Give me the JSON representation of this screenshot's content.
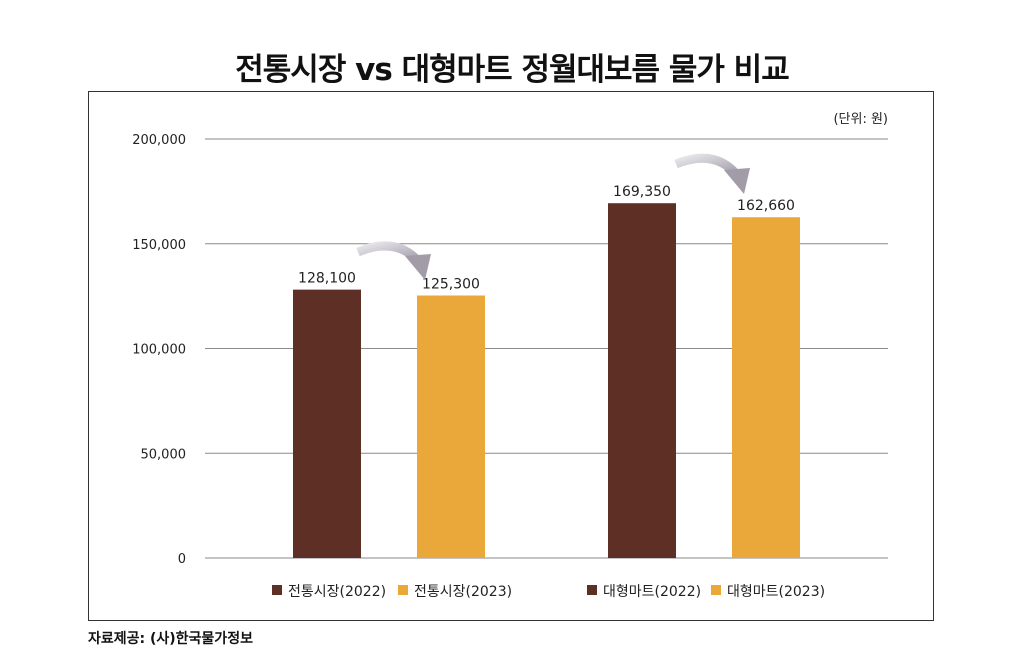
{
  "chart_data": {
    "type": "bar",
    "title": "전통시장 vs 대형마트 정월대보름 물가 비교",
    "unit_label": "(단위: 원)",
    "source": "자료제공: (사)한국물가정보",
    "ylim": [
      0,
      200000
    ],
    "yticks": [
      0,
      50000,
      100000,
      150000,
      200000
    ],
    "ytick_labels": [
      "0",
      "50,000",
      "100,000",
      "150,000",
      "200,000"
    ],
    "grid": true,
    "bars": [
      {
        "name": "전통시장(2022)",
        "value": 128100,
        "label": "128,100",
        "color": "#5e2f24"
      },
      {
        "name": "전통시장(2023)",
        "value": 125300,
        "label": "125,300",
        "color": "#eaa83a"
      },
      {
        "name": "대형마트(2022)",
        "value": 169350,
        "label": "169,350",
        "color": "#5e2f24"
      },
      {
        "name": "대형마트(2023)",
        "value": 162660,
        "label": "162,660",
        "color": "#eaa83a"
      }
    ],
    "legend": [
      {
        "label": "전통시장(2022)",
        "color": "#5e2f24"
      },
      {
        "label": "전통시장(2023)",
        "color": "#eaa83a"
      },
      {
        "label": "대형마트(2022)",
        "color": "#5e2f24"
      },
      {
        "label": "대형마트(2023)",
        "color": "#eaa83a"
      }
    ],
    "legend_position": "bottom"
  }
}
